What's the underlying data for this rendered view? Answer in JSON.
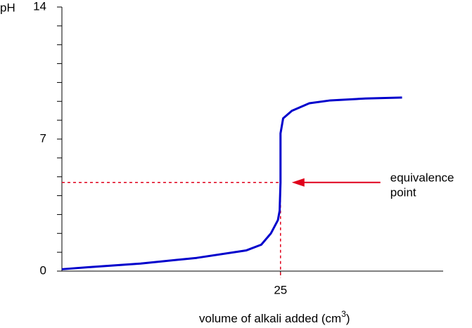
{
  "chart_data": {
    "type": "line",
    "ylabel": "pH",
    "xlabel": [
      "volume of alkali added (cm",
      "3",
      ")"
    ],
    "x": [
      0,
      3.4,
      9,
      15.4,
      21.1,
      22.8,
      23.9,
      24.7,
      24.9,
      25,
      25,
      25.3,
      26.3,
      28.3,
      30.7,
      34.7,
      38.9
    ],
    "series": [
      {
        "color": "#0000cc",
        "values": [
          0.1,
          0.22,
          0.4,
          0.7,
          1.1,
          1.4,
          2.0,
          2.7,
          3.2,
          4.7,
          7.3,
          8.1,
          8.5,
          8.9,
          9.05,
          9.15,
          9.2
        ]
      }
    ],
    "xlim": [
      0,
      43.6
    ],
    "xticks": [
      25
    ],
    "ylim": [
      0,
      14
    ],
    "yticks": [
      0,
      7,
      14
    ],
    "yminor_ticks": [
      1,
      2,
      3,
      4,
      5,
      6,
      8,
      9,
      10,
      11,
      12,
      13
    ],
    "equivalence_point": {
      "x": 25,
      "y": 4.7,
      "label": [
        "equivalence",
        "point"
      ],
      "color": "#e0001b"
    }
  }
}
